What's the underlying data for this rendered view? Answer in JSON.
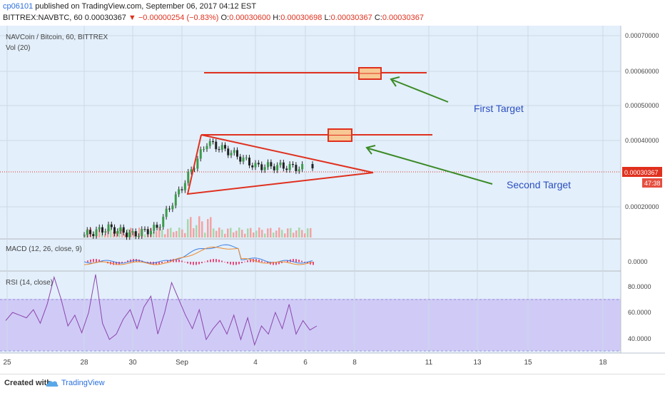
{
  "header": {
    "author": "cp06101",
    "published": "published on TradingView.com, September 06, 2017 04:12 EST",
    "symbol": "BITTREX:NAVBTC, 60",
    "last": "0.00030367",
    "arrow": "▼",
    "change": "−0.00000254 (−0.83%)",
    "o_label": "O:",
    "o_value": "0.00030600",
    "h_label": "H:",
    "h_value": "0.00030698",
    "l_label": "L:",
    "l_value": "0.00030367",
    "c_label": "C:",
    "c_value": "0.00030367"
  },
  "main_pane": {
    "title": "NAVCoin / Bitcoin, 60, BITTREX",
    "vol_label": "Vol (20)",
    "y_ticks": [
      "0.00070000",
      "0.00060000",
      "0.00050000",
      "0.00040000",
      "0.00020000"
    ],
    "price_tag": "0.00030367",
    "countdown": "47:38",
    "annotations": [
      "Second Target",
      "First Target"
    ]
  },
  "macd_pane": {
    "title": "MACD (12, 26, close, 9)",
    "y_ticks": [
      "0.0000"
    ]
  },
  "rsi_pane": {
    "title": "RSI (14, close)",
    "y_ticks": [
      "80.0000",
      "60.0000",
      "40.0000"
    ]
  },
  "x_ticks": [
    "25",
    "28",
    "30",
    "Sep",
    "4",
    "6",
    "8",
    "11",
    "13",
    "15",
    "18"
  ],
  "footer": {
    "created_with": "Created with",
    "brand": "TradingView"
  },
  "chart_data": {
    "type": "line",
    "symbol": "NAVBTC",
    "ylim": [
      0.0001,
      0.00072
    ],
    "price_x": [
      "28",
      "29",
      "30",
      "31",
      "Sep",
      "2",
      "3",
      "4",
      "5",
      "6"
    ],
    "price_close": [
      0.00011,
      0.00013,
      0.00011,
      0.00013,
      0.00025,
      0.00038,
      0.00035,
      0.00031,
      0.00031,
      0.000304
    ],
    "triangle_upper": {
      "start": [
        "Sep",
        0.000413
      ],
      "end": [
        "8",
        0.000302
      ]
    },
    "triangle_lower": {
      "start": [
        "Sep",
        0.000257
      ],
      "end": [
        "8",
        0.000302
      ]
    },
    "target_lines": [
      0.00041,
      0.000595
    ],
    "current_price": 0.00030367,
    "rsi_ylim": [
      30,
      90
    ],
    "rsi_band": [
      30,
      70
    ],
    "rsi_values": [
      54,
      60,
      58,
      56,
      62,
      52,
      66,
      86,
      70,
      50,
      58,
      45,
      60,
      88,
      52,
      40,
      44,
      55,
      62,
      48,
      64,
      72,
      44,
      60,
      82,
      70,
      58,
      48,
      62,
      40,
      48,
      54,
      44,
      58,
      40,
      56,
      36,
      50,
      44,
      60,
      48,
      66,
      44,
      54,
      47,
      50
    ]
  }
}
